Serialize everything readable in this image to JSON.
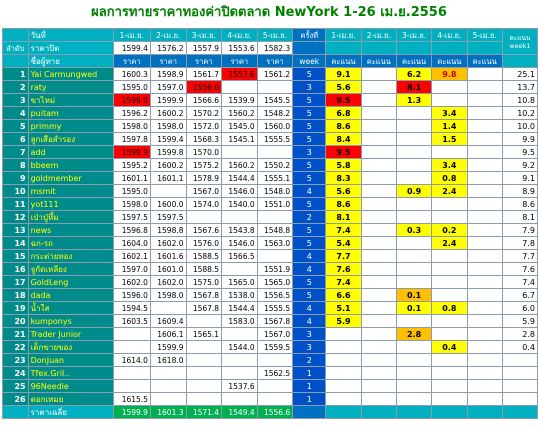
{
  "title": "ผลการทายราคาทองค่าปิดตลาด NewYork 1-26 เม.ย.2556",
  "headers": {
    "date_label": "วันที่",
    "rank_label": "ลำดับ",
    "close_label": "ราคาปิด",
    "player_label": "ชื่อผู้ทาย",
    "price_label": "ราคา",
    "times_label": "ครั้งที่",
    "week_label": "week",
    "score_label": "คะแนน",
    "week_total_label": "คะแนน week1",
    "dates": [
      "1-เม.ย.",
      "2-เม.ย.",
      "3-เม.ย.",
      "4-เม.ย.",
      "5-เม.ย."
    ],
    "score_dates": [
      "1-เม.ย.",
      "2-เม.ย.",
      "3-เม.ย.",
      "4-เม.ย.",
      "5-เม.ย."
    ],
    "close_prices": [
      "1599.4",
      "1576.2",
      "1557.9",
      "1553.6",
      "1582.3"
    ]
  },
  "rows": [
    {
      "n": "1",
      "name": "Yai Carmungwed",
      "p": [
        "1600.3",
        "1598.9",
        "1561.7",
        "1553.6",
        "1561.2"
      ],
      "red": [
        3
      ],
      "wk": "5",
      "s": [
        "9.1",
        "",
        "6.2",
        "9.8",
        ""
      ],
      "sc": [
        "y",
        "",
        "y",
        "o",
        ""
      ],
      "sr": [
        3
      ],
      "t": "25.1"
    },
    {
      "n": "2",
      "name": "raty",
      "p": [
        "1595.0",
        "1597.0",
        "1556.0",
        "",
        ""
      ],
      "red": [
        2
      ],
      "wk": "3",
      "s": [
        "5.6",
        "",
        "8.1",
        "",
        ""
      ],
      "sc": [
        "y",
        "",
        "r",
        "",
        ""
      ],
      "sr": [],
      "t": "13.7"
    },
    {
      "n": "3",
      "name": "ขาไหม่",
      "p": [
        "1599.9",
        "1599.9",
        "1566.6",
        "1539.9",
        "1545.5"
      ],
      "red": [
        0
      ],
      "wk": "5",
      "s": [
        "9.5",
        "",
        "1.3",
        "",
        ""
      ],
      "sc": [
        "r",
        "",
        "y",
        "",
        ""
      ],
      "sr": [],
      "t": "10.8"
    },
    {
      "n": "4",
      "name": "puitam",
      "p": [
        "1596.2",
        "1600.2",
        "1570.2",
        "1560.2",
        "1548.2"
      ],
      "red": [],
      "wk": "5",
      "s": [
        "6.8",
        "",
        "",
        "3.4",
        ""
      ],
      "sc": [
        "y",
        "",
        "",
        "y",
        ""
      ],
      "sr": [],
      "t": "10.2"
    },
    {
      "n": "5",
      "name": "primmy",
      "p": [
        "1598.0",
        "1598.0",
        "1572.0",
        "1545.0",
        "1560.0"
      ],
      "red": [],
      "wk": "5",
      "s": [
        "8.6",
        "",
        "",
        "1.4",
        ""
      ],
      "sc": [
        "y",
        "",
        "",
        "y",
        ""
      ],
      "sr": [],
      "t": "10.0"
    },
    {
      "n": "6",
      "name": "ลูกเสือสำรอง",
      "p": [
        "1597.8",
        "1599.4",
        "1568.3",
        "1545.1",
        "1555.5"
      ],
      "red": [],
      "wk": "5",
      "s": [
        "8.4",
        "",
        "",
        "1.5",
        ""
      ],
      "sc": [
        "y",
        "",
        "",
        "y",
        ""
      ],
      "sr": [],
      "t": "9.9"
    },
    {
      "n": "7",
      "name": "add",
      "p": [
        "1599.9",
        "1599.8",
        "1570.0",
        "",
        ""
      ],
      "red": [
        0
      ],
      "wk": "3",
      "s": [
        "9.5",
        "",
        "",
        "",
        ""
      ],
      "sc": [
        "r",
        "",
        "",
        "",
        ""
      ],
      "sr": [],
      "t": "9.5"
    },
    {
      "n": "8",
      "name": "bbeem",
      "p": [
        "1595.2",
        "1600.2",
        "1575.2",
        "1560.2",
        "1550.2"
      ],
      "red": [],
      "wk": "5",
      "s": [
        "5.8",
        "",
        "",
        "3.4",
        ""
      ],
      "sc": [
        "y",
        "",
        "",
        "y",
        ""
      ],
      "sr": [],
      "t": "9.2"
    },
    {
      "n": "9",
      "name": "goldmember",
      "p": [
        "1601.1",
        "1601.1",
        "1578.9",
        "1544.4",
        "1555.1"
      ],
      "red": [],
      "wk": "5",
      "s": [
        "8.3",
        "",
        "",
        "0.8",
        ""
      ],
      "sc": [
        "y",
        "",
        "",
        "y",
        ""
      ],
      "sr": [],
      "t": "9.1"
    },
    {
      "n": "10",
      "name": "msmit",
      "p": [
        "1595.0",
        "",
        "1567.0",
        "1546.0",
        "1548.0"
      ],
      "red": [],
      "wk": "4",
      "s": [
        "5.6",
        "",
        "0.9",
        "2.4",
        ""
      ],
      "sc": [
        "y",
        "",
        "y",
        "y",
        ""
      ],
      "sr": [],
      "t": "8.9"
    },
    {
      "n": "11",
      "name": "yot111",
      "p": [
        "1598.0",
        "1600.0",
        "1574.0",
        "1540.0",
        "1551.0"
      ],
      "red": [],
      "wk": "5",
      "s": [
        "8.6",
        "",
        "",
        "",
        ""
      ],
      "sc": [
        "y",
        "",
        "",
        "",
        ""
      ],
      "sr": [],
      "t": "8.6"
    },
    {
      "n": "12",
      "name": "เป่าปู่หึ้ม",
      "p": [
        "1597.5",
        "1597.5",
        "",
        "",
        ""
      ],
      "red": [],
      "wk": "2",
      "s": [
        "8.1",
        "",
        "",
        "",
        ""
      ],
      "sc": [
        "y",
        "",
        "",
        "",
        ""
      ],
      "sr": [],
      "t": "8.1"
    },
    {
      "n": "13",
      "name": "news",
      "p": [
        "1596.8",
        "1598.8",
        "1567.6",
        "1543.8",
        "1548.8"
      ],
      "red": [],
      "wk": "5",
      "s": [
        "7.4",
        "",
        "0.3",
        "0.2",
        ""
      ],
      "sc": [
        "y",
        "",
        "y",
        "y",
        ""
      ],
      "sr": [],
      "t": "7.9"
    },
    {
      "n": "14",
      "name": "ฉก-รถ",
      "p": [
        "1604.0",
        "1602.0",
        "1576.0",
        "1546.0",
        "1563.0"
      ],
      "red": [],
      "wk": "5",
      "s": [
        "5.4",
        "",
        "",
        "2.4",
        ""
      ],
      "sc": [
        "y",
        "",
        "",
        "y",
        ""
      ],
      "sr": [],
      "t": "7.8"
    },
    {
      "n": "15",
      "name": "กระต่ายทอง",
      "p": [
        "1602.1",
        "1601.6",
        "1588.5",
        "1566.5",
        ""
      ],
      "red": [],
      "wk": "4",
      "s": [
        "7.7",
        "",
        "",
        "",
        ""
      ],
      "sc": [
        "y",
        "",
        "",
        "",
        ""
      ],
      "sr": [],
      "t": "7.7"
    },
    {
      "n": "16",
      "name": "จูกัดเหลียง",
      "p": [
        "1597.0",
        "1601.0",
        "1588.5",
        "",
        "1551.9"
      ],
      "red": [],
      "wk": "4",
      "s": [
        "7.6",
        "",
        "",
        "",
        ""
      ],
      "sc": [
        "y",
        "",
        "",
        "",
        ""
      ],
      "sr": [],
      "t": "7.6"
    },
    {
      "n": "17",
      "name": "GoldLeng",
      "p": [
        "1602.0",
        "1602.0",
        "1575.0",
        "1565.0",
        "1565.0"
      ],
      "red": [],
      "wk": "5",
      "s": [
        "7.4",
        "",
        "",
        "",
        ""
      ],
      "sc": [
        "y",
        "",
        "",
        "",
        ""
      ],
      "sr": [],
      "t": "7.4"
    },
    {
      "n": "18",
      "name": "dada",
      "p": [
        "1596.0",
        "1598.0",
        "1567.8",
        "1538.0",
        "1556.5"
      ],
      "red": [],
      "wk": "5",
      "s": [
        "6.6",
        "",
        "0.1",
        "",
        ""
      ],
      "sc": [
        "y",
        "",
        "o",
        "",
        ""
      ],
      "sr": [],
      "t": "6.7"
    },
    {
      "n": "19",
      "name": "น้ำใส",
      "p": [
        "1594.5",
        "",
        "1567.8",
        "1544.4",
        "1555.5"
      ],
      "red": [],
      "wk": "4",
      "s": [
        "5.1",
        "",
        "0.1",
        "0.8",
        ""
      ],
      "sc": [
        "y",
        "",
        "y",
        "y",
        ""
      ],
      "sr": [],
      "t": "6.0"
    },
    {
      "n": "20",
      "name": "kumponys",
      "p": [
        "1603.5",
        "1609.4",
        "",
        "1583.0",
        "1567.8"
      ],
      "red": [],
      "wk": "4",
      "s": [
        "5.9",
        "",
        "",
        "",
        ""
      ],
      "sc": [
        "y",
        "",
        "",
        "",
        ""
      ],
      "sr": [],
      "t": "5.9"
    },
    {
      "n": "21",
      "name": "Trader Junior",
      "p": [
        "",
        "1606.1",
        "1565.1",
        "",
        "1567.0"
      ],
      "red": [],
      "wk": "3",
      "s": [
        "",
        "",
        "2.8",
        "",
        ""
      ],
      "sc": [
        "",
        "",
        "o",
        "",
        ""
      ],
      "sr": [],
      "t": "2.8"
    },
    {
      "n": "22",
      "name": "เด็กขายของ",
      "p": [
        "",
        "1599.9",
        "",
        "1544.0",
        "1559.5"
      ],
      "red": [],
      "wk": "3",
      "s": [
        "",
        "",
        "",
        "0.4",
        ""
      ],
      "sc": [
        "",
        "",
        "",
        "y",
        ""
      ],
      "sr": [],
      "t": "0.4"
    },
    {
      "n": "23",
      "name": "DonJuan",
      "p": [
        "1614.0",
        "1618.0",
        "",
        "",
        ""
      ],
      "red": [],
      "wk": "2",
      "s": [
        "",
        "",
        "",
        "",
        ""
      ],
      "sc": [
        "",
        "",
        "",
        "",
        ""
      ],
      "sr": [],
      "t": ""
    },
    {
      "n": "24",
      "name": "Tfex.Gril..",
      "p": [
        "",
        "",
        "",
        "",
        "1562.5"
      ],
      "red": [],
      "wk": "1",
      "s": [
        "",
        "",
        "",
        "",
        ""
      ],
      "sc": [
        "",
        "",
        "",
        "",
        ""
      ],
      "sr": [],
      "t": ""
    },
    {
      "n": "25",
      "name": "96Needle",
      "p": [
        "",
        "",
        "",
        "1537.6",
        ""
      ],
      "red": [],
      "wk": "1",
      "s": [
        "",
        "",
        "",
        "",
        ""
      ],
      "sc": [
        "",
        "",
        "",
        "",
        ""
      ],
      "sr": [],
      "t": ""
    },
    {
      "n": "26",
      "name": "ดอกเหมย",
      "p": [
        "1615.5",
        "",
        "",
        "",
        ""
      ],
      "red": [],
      "wk": "1",
      "s": [
        "",
        "",
        "",
        "",
        ""
      ],
      "sc": [
        "",
        "",
        "",
        "",
        ""
      ],
      "sr": [],
      "t": ""
    }
  ],
  "footer": {
    "label": "ราคาเฉลี่ย",
    "values": [
      "1599.9",
      "1601.3",
      "1571.4",
      "1549.4",
      "1556.6"
    ]
  },
  "colors": {
    "teal": "#008b8b",
    "header_cyan": "#00b0c0",
    "week_blue": "#0050c8",
    "score_yellow": "#ffff00",
    "score_orange": "#ffc000",
    "score_red": "#ff0000",
    "footer_green": "#00b050"
  }
}
